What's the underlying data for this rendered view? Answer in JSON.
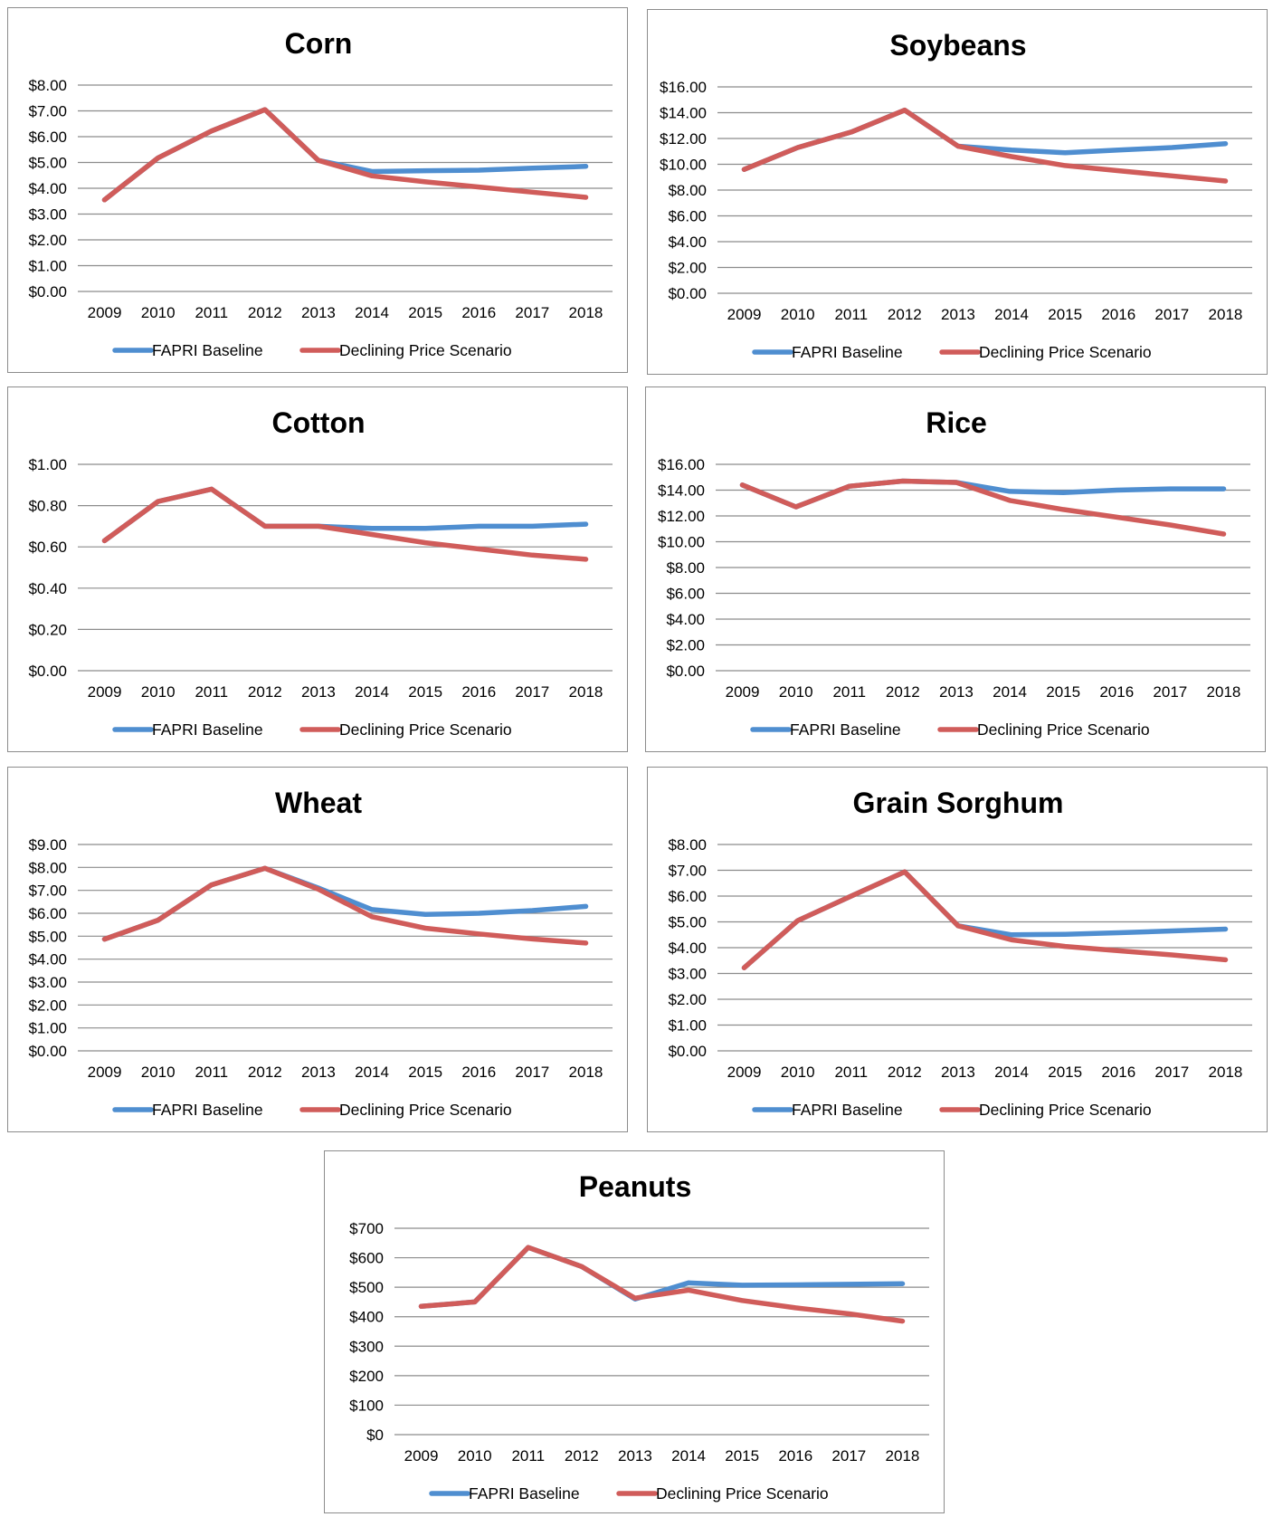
{
  "colors": {
    "baseline": "#4f8ed0",
    "declining": "#d05c5a",
    "grid": "#8c8c8c",
    "border": "#8c8c8c"
  },
  "legend": {
    "baseline_label": "FAPRI Baseline",
    "declining_label": "Declining Price Scenario",
    "placement": "bottom"
  },
  "chart_data": [
    {
      "id": "corn",
      "type": "line",
      "title": "Corn",
      "categories": [
        "2009",
        "2010",
        "2011",
        "2012",
        "2013",
        "2014",
        "2015",
        "2016",
        "2017",
        "2018"
      ],
      "ylim": [
        0,
        8
      ],
      "yticks": [
        "$0.00",
        "$1.00",
        "$2.00",
        "$3.00",
        "$4.00",
        "$5.00",
        "$6.00",
        "$7.00",
        "$8.00"
      ],
      "grid": true,
      "series": [
        {
          "name": "FAPRI Baseline",
          "values": [
            3.55,
            5.18,
            6.22,
            7.05,
            5.08,
            4.65,
            4.68,
            4.7,
            4.78,
            4.85
          ]
        },
        {
          "name": "Declining Price Scenario",
          "values": [
            3.55,
            5.18,
            6.22,
            7.05,
            5.08,
            4.48,
            4.25,
            4.05,
            3.85,
            3.65
          ]
        }
      ]
    },
    {
      "id": "soybeans",
      "type": "line",
      "title": "Soybeans",
      "categories": [
        "2009",
        "2010",
        "2011",
        "2012",
        "2013",
        "2014",
        "2015",
        "2016",
        "2017",
        "2018"
      ],
      "ylim": [
        0,
        16
      ],
      "yticks": [
        "$0.00",
        "$2.00",
        "$4.00",
        "$6.00",
        "$8.00",
        "$10.00",
        "$12.00",
        "$14.00",
        "$16.00"
      ],
      "grid": true,
      "series": [
        {
          "name": "FAPRI Baseline",
          "values": [
            9.6,
            11.3,
            12.5,
            14.2,
            11.4,
            11.1,
            10.9,
            11.1,
            11.3,
            11.6
          ]
        },
        {
          "name": "Declining Price Scenario",
          "values": [
            9.6,
            11.3,
            12.5,
            14.2,
            11.4,
            10.6,
            9.9,
            9.5,
            9.1,
            8.7
          ]
        }
      ]
    },
    {
      "id": "cotton",
      "type": "line",
      "title": "Cotton",
      "categories": [
        "2009",
        "2010",
        "2011",
        "2012",
        "2013",
        "2014",
        "2015",
        "2016",
        "2017",
        "2018"
      ],
      "ylim": [
        0,
        1
      ],
      "yticks": [
        "$0.00",
        "$0.20",
        "$0.40",
        "$0.60",
        "$0.80",
        "$1.00"
      ],
      "grid": true,
      "series": [
        {
          "name": "FAPRI Baseline",
          "values": [
            0.63,
            0.82,
            0.88,
            0.7,
            0.7,
            0.69,
            0.69,
            0.7,
            0.7,
            0.71
          ]
        },
        {
          "name": "Declining Price Scenario",
          "values": [
            0.63,
            0.82,
            0.88,
            0.7,
            0.7,
            0.66,
            0.62,
            0.59,
            0.56,
            0.54
          ]
        }
      ]
    },
    {
      "id": "rice",
      "type": "line",
      "title": "Rice",
      "categories": [
        "2009",
        "2010",
        "2011",
        "2012",
        "2013",
        "2014",
        "2015",
        "2016",
        "2017",
        "2018"
      ],
      "ylim": [
        0,
        16
      ],
      "yticks": [
        "$0.00",
        "$2.00",
        "$4.00",
        "$6.00",
        "$8.00",
        "$10.00",
        "$12.00",
        "$14.00",
        "$16.00"
      ],
      "grid": true,
      "series": [
        {
          "name": "FAPRI Baseline",
          "values": [
            14.4,
            12.7,
            14.3,
            14.7,
            14.6,
            13.9,
            13.8,
            14.0,
            14.1,
            14.1
          ]
        },
        {
          "name": "Declining Price Scenario",
          "values": [
            14.4,
            12.7,
            14.3,
            14.7,
            14.6,
            13.2,
            12.5,
            11.9,
            11.3,
            10.6
          ]
        }
      ]
    },
    {
      "id": "wheat",
      "type": "line",
      "title": "Wheat",
      "categories": [
        "2009",
        "2010",
        "2011",
        "2012",
        "2013",
        "2014",
        "2015",
        "2016",
        "2017",
        "2018"
      ],
      "ylim": [
        0,
        9
      ],
      "yticks": [
        "$0.00",
        "$1.00",
        "$2.00",
        "$3.00",
        "$4.00",
        "$5.00",
        "$6.00",
        "$7.00",
        "$8.00",
        "$9.00"
      ],
      "grid": true,
      "series": [
        {
          "name": "FAPRI Baseline",
          "values": [
            4.87,
            5.7,
            7.24,
            7.96,
            7.1,
            6.16,
            5.95,
            6.0,
            6.12,
            6.3
          ]
        },
        {
          "name": "Declining Price Scenario",
          "values": [
            4.87,
            5.7,
            7.24,
            7.96,
            7.05,
            5.85,
            5.35,
            5.1,
            4.88,
            4.7
          ]
        }
      ]
    },
    {
      "id": "sorghum",
      "type": "line",
      "title": "Grain Sorghum",
      "categories": [
        "2009",
        "2010",
        "2011",
        "2012",
        "2013",
        "2014",
        "2015",
        "2016",
        "2017",
        "2018"
      ],
      "ylim": [
        0,
        8
      ],
      "yticks": [
        "$0.00",
        "$1.00",
        "$2.00",
        "$3.00",
        "$4.00",
        "$5.00",
        "$6.00",
        "$7.00",
        "$8.00"
      ],
      "grid": true,
      "series": [
        {
          "name": "FAPRI Baseline",
          "values": [
            3.22,
            5.05,
            6.0,
            6.94,
            4.85,
            4.5,
            4.52,
            4.58,
            4.65,
            4.72
          ]
        },
        {
          "name": "Declining Price Scenario",
          "values": [
            3.22,
            5.05,
            6.0,
            6.94,
            4.85,
            4.3,
            4.05,
            3.88,
            3.72,
            3.53
          ]
        }
      ]
    },
    {
      "id": "peanuts",
      "type": "line",
      "title": "Peanuts",
      "categories": [
        "2009",
        "2010",
        "2011",
        "2012",
        "2013",
        "2014",
        "2015",
        "2016",
        "2017",
        "2018"
      ],
      "ylim": [
        0,
        700
      ],
      "yticks": [
        "$0",
        "$100",
        "$200",
        "$300",
        "$400",
        "$500",
        "$600",
        "$700"
      ],
      "grid": true,
      "series": [
        {
          "name": "FAPRI Baseline",
          "values": [
            435,
            450,
            635,
            570,
            460,
            515,
            507,
            508,
            510,
            512
          ]
        },
        {
          "name": "Declining Price Scenario",
          "values": [
            435,
            450,
            635,
            570,
            463,
            490,
            455,
            430,
            410,
            385
          ]
        }
      ]
    }
  ]
}
